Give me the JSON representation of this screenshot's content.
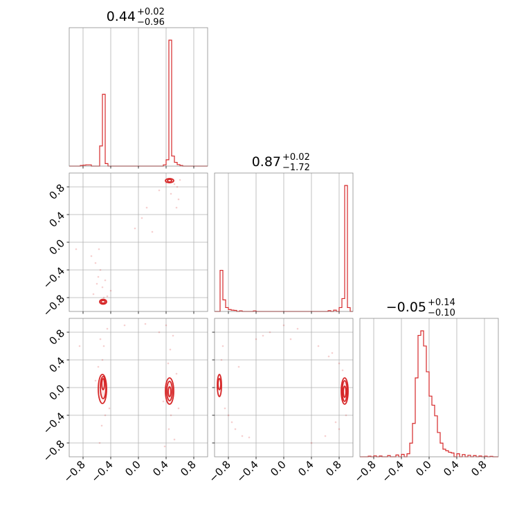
{
  "chart_data": {
    "type": "corner",
    "axis_range": [
      -1.0,
      1.0
    ],
    "ticks": [
      -0.8,
      -0.4,
      0.0,
      0.4,
      0.8
    ],
    "tick_labels": [
      "−0.8",
      "−0.4",
      "0.0",
      "0.4",
      "0.8"
    ],
    "color": "#d62728",
    "grid": true,
    "titles": [
      {
        "median": "0.44",
        "plus": "+0.02",
        "minus": "−0.96"
      },
      {
        "median": "0.87",
        "plus": "+0.02",
        "minus": "−1.72"
      },
      {
        "median": "−0.05",
        "plus": "+0.14",
        "minus": "−0.10"
      }
    ],
    "histograms": [
      {
        "parameter": 0,
        "bins": [
          [
            -0.84,
            0.005
          ],
          [
            -0.8,
            0.008
          ],
          [
            -0.76,
            0.01
          ],
          [
            -0.72,
            0.01
          ],
          [
            -0.56,
            0.16
          ],
          [
            -0.52,
            0.57
          ],
          [
            -0.48,
            0.02
          ],
          [
            0.36,
            0.01
          ],
          [
            0.4,
            0.05
          ],
          [
            0.44,
            1.0
          ],
          [
            0.48,
            0.08
          ],
          [
            0.52,
            0.03
          ],
          [
            0.56,
            0.012
          ],
          [
            0.6,
            0.005
          ]
        ]
      },
      {
        "parameter": 1,
        "bins": [
          [
            -0.92,
            0.32
          ],
          [
            -0.88,
            0.09
          ],
          [
            -0.84,
            0.03
          ],
          [
            -0.8,
            0.015
          ],
          [
            -0.76,
            0.01
          ],
          [
            -0.72,
            0.008
          ],
          [
            -0.64,
            0.005
          ],
          [
            -0.44,
            0.004
          ],
          [
            0.64,
            0.006
          ],
          [
            0.72,
            0.01
          ],
          [
            0.8,
            0.03
          ],
          [
            0.84,
            0.1
          ],
          [
            0.88,
            0.98
          ],
          [
            0.92,
            0.03
          ]
        ]
      },
      {
        "parameter": 2,
        "bins": [
          [
            -0.88,
            0.004
          ],
          [
            -0.8,
            0.006
          ],
          [
            -0.72,
            0.005
          ],
          [
            -0.6,
            0.008
          ],
          [
            -0.48,
            0.012
          ],
          [
            -0.4,
            0.016
          ],
          [
            -0.32,
            0.02
          ],
          [
            -0.28,
            0.09
          ],
          [
            -0.24,
            0.22
          ],
          [
            -0.2,
            0.52
          ],
          [
            -0.16,
            0.8
          ],
          [
            -0.12,
            0.83
          ],
          [
            -0.08,
            0.73
          ],
          [
            -0.04,
            0.56
          ],
          [
            0.0,
            0.4
          ],
          [
            0.04,
            0.34
          ],
          [
            0.08,
            0.27
          ],
          [
            0.12,
            0.16
          ],
          [
            0.16,
            0.09
          ],
          [
            0.2,
            0.05
          ],
          [
            0.24,
            0.04
          ],
          [
            0.28,
            0.03
          ],
          [
            0.32,
            0.025
          ],
          [
            0.4,
            0.02
          ],
          [
            0.48,
            0.015
          ],
          [
            0.56,
            0.01
          ],
          [
            0.64,
            0.008
          ],
          [
            0.72,
            0.005
          ],
          [
            0.8,
            0.004
          ],
          [
            0.88,
            0.003
          ]
        ]
      }
    ],
    "pairs": [
      {
        "x_param": 0,
        "y_param": 1,
        "contours": [
          {
            "cx": 0.45,
            "cy": 0.89,
            "rx": 0.03,
            "ry": 0.02
          },
          {
            "cx": 0.45,
            "cy": 0.89,
            "rx": 0.06,
            "ry": 0.03
          },
          {
            "cx": -0.51,
            "cy": -0.86,
            "rx": 0.03,
            "ry": 0.02
          },
          {
            "cx": -0.51,
            "cy": -0.86,
            "rx": 0.05,
            "ry": 0.035
          }
        ],
        "points": [
          [
            0.4,
            0.86
          ],
          [
            0.52,
            0.84
          ],
          [
            0.56,
            0.8
          ],
          [
            0.47,
            0.7
          ],
          [
            0.6,
            0.9
          ],
          [
            0.3,
            0.75
          ],
          [
            0.12,
            0.5
          ],
          [
            -0.05,
            0.2
          ],
          [
            0.05,
            0.35
          ],
          [
            -0.4,
            -0.7
          ],
          [
            -0.58,
            -0.5
          ],
          [
            -0.62,
            -0.3
          ],
          [
            -0.55,
            -0.4
          ],
          [
            -0.48,
            -0.55
          ],
          [
            -0.52,
            -0.65
          ],
          [
            -0.65,
            -0.75
          ],
          [
            -0.45,
            -0.78
          ],
          [
            -0.68,
            -0.2
          ],
          [
            -0.57,
            -0.1
          ],
          [
            -0.9,
            -0.1
          ],
          [
            0.55,
            0.5
          ],
          [
            0.58,
            0.62
          ],
          [
            -0.6,
            -0.6
          ],
          [
            -0.5,
            -0.8
          ],
          [
            0.2,
            0.15
          ]
        ]
      },
      {
        "x_param": 0,
        "y_param": 2,
        "contours": [
          {
            "cx": -0.51,
            "cy": 0.05,
            "rx": 0.02,
            "ry": 0.08
          },
          {
            "cx": -0.51,
            "cy": 0.0,
            "rx": 0.04,
            "ry": 0.16
          },
          {
            "cx": -0.52,
            "cy": -0.02,
            "rx": 0.06,
            "ry": 0.21
          },
          {
            "cx": 0.45,
            "cy": -0.06,
            "rx": 0.02,
            "ry": 0.07
          },
          {
            "cx": 0.45,
            "cy": -0.05,
            "rx": 0.04,
            "ry": 0.14
          },
          {
            "cx": 0.45,
            "cy": -0.05,
            "rx": 0.06,
            "ry": 0.19
          }
        ],
        "points": [
          [
            -0.52,
            0.4
          ],
          [
            -0.5,
            0.6
          ],
          [
            -0.55,
            0.7
          ],
          [
            -0.45,
            0.85
          ],
          [
            -0.58,
            0.3
          ],
          [
            -0.48,
            -0.4
          ],
          [
            -0.53,
            -0.55
          ],
          [
            -0.56,
            -0.8
          ],
          [
            -0.42,
            -0.3
          ],
          [
            0.43,
            0.35
          ],
          [
            0.46,
            0.55
          ],
          [
            0.5,
            0.75
          ],
          [
            0.4,
            0.9
          ],
          [
            0.47,
            -0.4
          ],
          [
            0.44,
            -0.6
          ],
          [
            0.52,
            -0.75
          ],
          [
            0.38,
            -0.85
          ],
          [
            0.3,
            0.8
          ],
          [
            -0.2,
            0.9
          ],
          [
            0.1,
            0.92
          ],
          [
            -0.85,
            0.6
          ],
          [
            0.55,
            0.2
          ],
          [
            0.36,
            -0.2
          ],
          [
            -0.62,
            0.1
          ],
          [
            0.58,
            -0.3
          ]
        ]
      },
      {
        "x_param": 1,
        "y_param": 2,
        "contours": [
          {
            "cx": -0.93,
            "cy": 0.05,
            "rx": 0.02,
            "ry": 0.08
          },
          {
            "cx": -0.93,
            "cy": 0.03,
            "rx": 0.03,
            "ry": 0.16
          },
          {
            "cx": 0.88,
            "cy": -0.06,
            "rx": 0.02,
            "ry": 0.08
          },
          {
            "cx": 0.88,
            "cy": -0.05,
            "rx": 0.035,
            "ry": 0.15
          },
          {
            "cx": 0.88,
            "cy": -0.05,
            "rx": 0.05,
            "ry": 0.19
          }
        ],
        "points": [
          [
            -0.9,
            0.4
          ],
          [
            -0.88,
            0.6
          ],
          [
            -0.8,
            -0.4
          ],
          [
            -0.7,
            -0.6
          ],
          [
            -0.6,
            -0.7
          ],
          [
            -0.5,
            -0.72
          ],
          [
            -0.85,
            -0.3
          ],
          [
            -0.4,
            0.7
          ],
          [
            -0.2,
            0.8
          ],
          [
            0.0,
            0.9
          ],
          [
            0.2,
            0.85
          ],
          [
            0.5,
            0.6
          ],
          [
            0.7,
            0.5
          ],
          [
            0.8,
            0.35
          ],
          [
            0.85,
            0.25
          ],
          [
            0.9,
            -0.4
          ],
          [
            0.8,
            -0.6
          ],
          [
            0.6,
            -0.7
          ],
          [
            0.4,
            -0.8
          ],
          [
            -0.3,
            0.75
          ],
          [
            -0.75,
            -0.5
          ],
          [
            -0.65,
            0.3
          ],
          [
            0.65,
            0.45
          ],
          [
            0.75,
            -0.5
          ],
          [
            0.1,
            0.7
          ]
        ]
      }
    ]
  }
}
